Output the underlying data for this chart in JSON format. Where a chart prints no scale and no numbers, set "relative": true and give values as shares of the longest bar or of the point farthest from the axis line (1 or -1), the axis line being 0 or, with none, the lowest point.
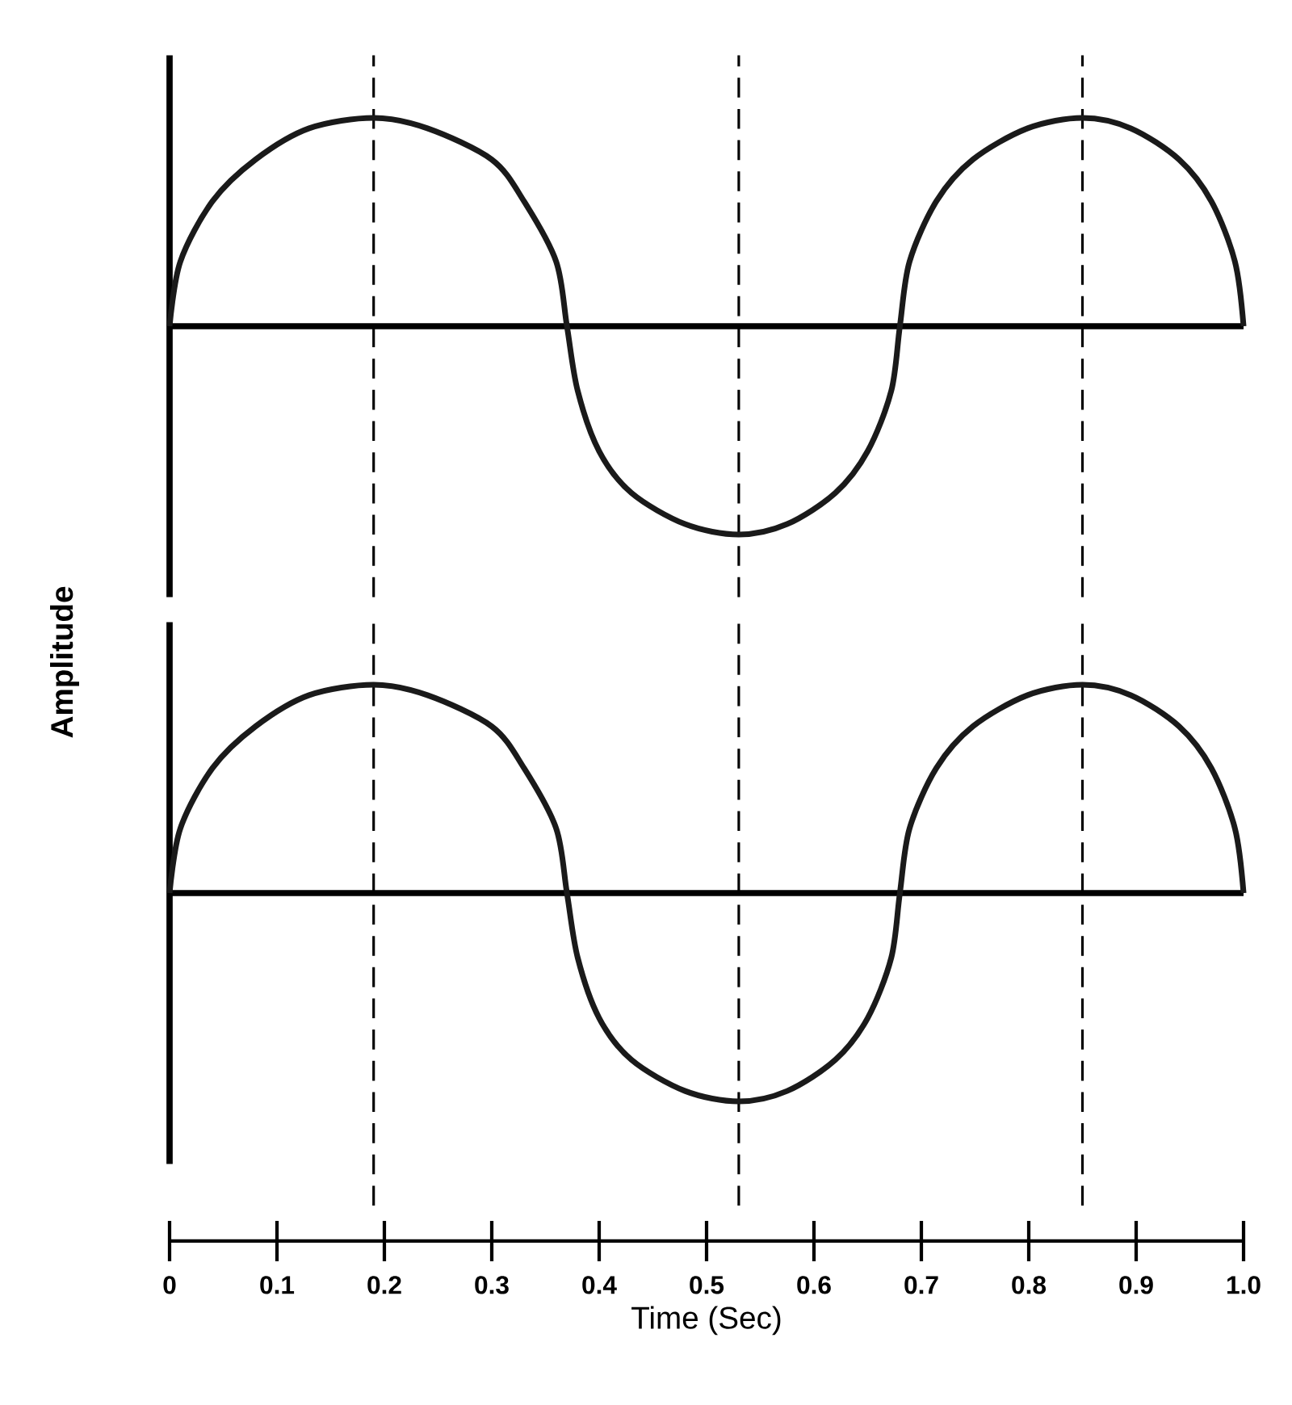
{
  "chart_data": [
    {
      "type": "line",
      "relative": true,
      "ylabel": "Amplitude",
      "xlim": [
        0,
        1
      ],
      "tick_labels": false,
      "x": [
        0,
        0.01,
        0.04,
        0.08,
        0.13,
        0.19,
        0.24,
        0.3,
        0.33,
        0.36,
        0.37,
        0.38,
        0.4,
        0.43,
        0.48,
        0.53,
        0.575,
        0.62,
        0.65,
        0.672,
        0.68,
        0.689,
        0.714,
        0.748,
        0.799,
        0.85,
        0.895,
        0.94,
        0.97,
        0.992,
        1.0
      ],
      "series": [
        {
          "color": "#1a1a1a",
          "values": [
            0,
            0.31,
            0.6,
            0.8,
            0.95,
            1,
            0.95,
            0.8,
            0.6,
            0.31,
            0,
            -0.31,
            -0.6,
            -0.8,
            -0.95,
            -1,
            -0.95,
            -0.8,
            -0.6,
            -0.31,
            0,
            0.31,
            0.6,
            0.8,
            0.95,
            1,
            0.95,
            0.8,
            0.6,
            0.31,
            0
          ]
        }
      ],
      "ref_lines": [
        {
          "axis": "x",
          "value": 0.19,
          "line_style": "dashed"
        },
        {
          "axis": "x",
          "value": 0.53,
          "line_style": "dashed"
        },
        {
          "axis": "x",
          "value": 0.85,
          "line_style": "dashed"
        }
      ]
    },
    {
      "type": "line",
      "relative": true,
      "xlabel": "Time (Sec)",
      "xlim": [
        0,
        1
      ],
      "xticks": [
        0,
        0.1,
        0.2,
        0.3,
        0.4,
        0.5,
        0.6,
        0.7,
        0.8,
        0.9,
        {
          "value": 1,
          "label": "1.0"
        }
      ],
      "tick_labels": "x",
      "x": [
        0,
        0.01,
        0.04,
        0.08,
        0.13,
        0.19,
        0.24,
        0.3,
        0.33,
        0.36,
        0.37,
        0.38,
        0.4,
        0.43,
        0.48,
        0.53,
        0.575,
        0.62,
        0.65,
        0.672,
        0.68,
        0.689,
        0.714,
        0.748,
        0.799,
        0.85,
        0.895,
        0.94,
        0.97,
        0.992,
        1.0
      ],
      "series": [
        {
          "color": "#1a1a1a",
          "values": [
            0,
            0.31,
            0.6,
            0.8,
            0.95,
            1,
            0.95,
            0.8,
            0.6,
            0.31,
            0,
            -0.31,
            -0.6,
            -0.8,
            -0.95,
            -1,
            -0.95,
            -0.8,
            -0.6,
            -0.31,
            0,
            0.31,
            0.6,
            0.8,
            0.95,
            1,
            0.95,
            0.8,
            0.6,
            0.31,
            0
          ]
        }
      ],
      "ref_lines": [
        {
          "axis": "x",
          "value": 0.19,
          "line_style": "dashed"
        },
        {
          "axis": "x",
          "value": 0.53,
          "line_style": "dashed"
        },
        {
          "axis": "x",
          "value": 0.85,
          "line_style": "dashed"
        }
      ]
    }
  ]
}
